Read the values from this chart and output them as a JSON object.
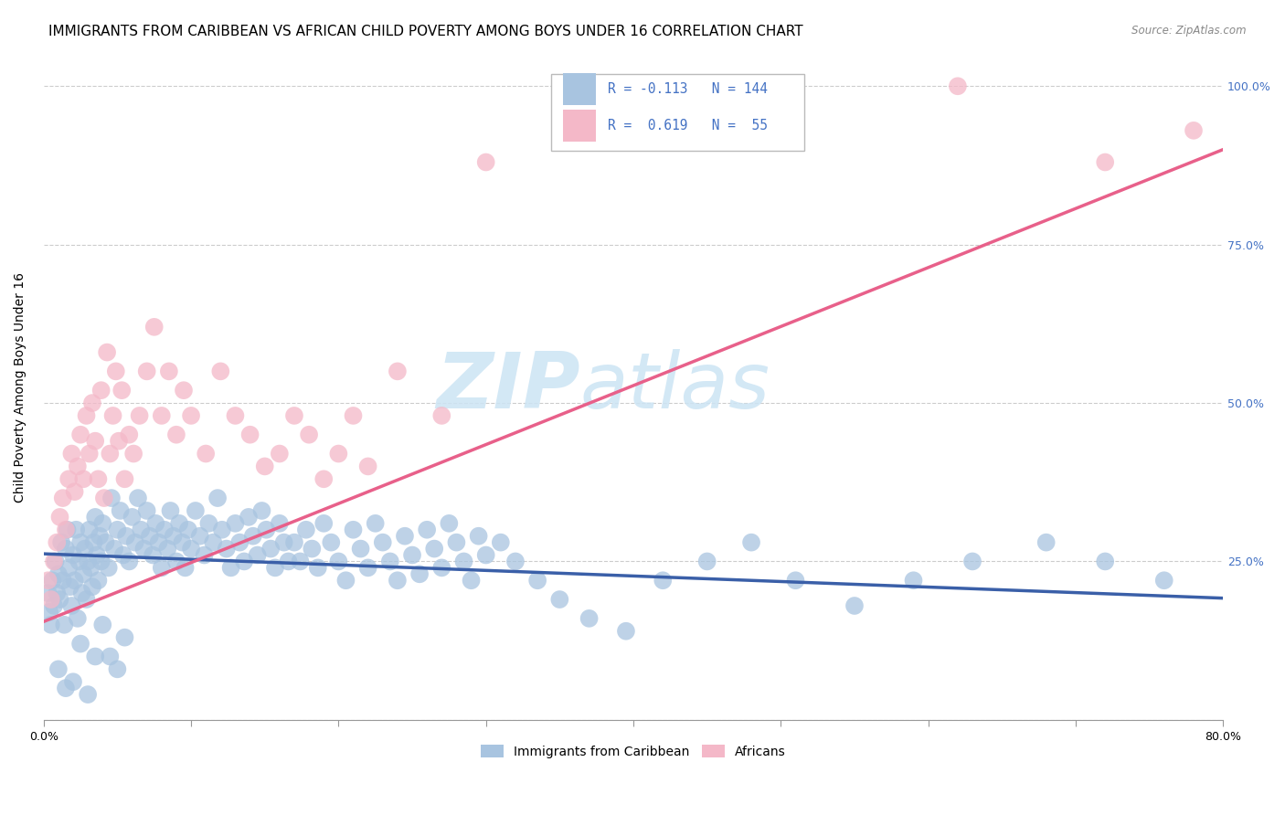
{
  "title": "IMMIGRANTS FROM CARIBBEAN VS AFRICAN CHILD POVERTY AMONG BOYS UNDER 16 CORRELATION CHART",
  "source": "Source: ZipAtlas.com",
  "ylabel": "Child Poverty Among Boys Under 16",
  "xlim": [
    0.0,
    0.8
  ],
  "ylim": [
    0.0,
    1.05
  ],
  "xticks": [
    0.0,
    0.1,
    0.2,
    0.3,
    0.4,
    0.5,
    0.6,
    0.7,
    0.8
  ],
  "xticklabels": [
    "0.0%",
    "",
    "",
    "",
    "",
    "",
    "",
    "",
    "80.0%"
  ],
  "ytick_positions": [
    0.0,
    0.25,
    0.5,
    0.75,
    1.0
  ],
  "ytick_labels_right": [
    "",
    "25.0%",
    "50.0%",
    "75.0%",
    "100.0%"
  ],
  "watermark_zip": "ZIP",
  "watermark_atlas": "atlas",
  "legend_text_r1": "R = -0.113",
  "legend_text_n1": "N = 144",
  "legend_text_r2": "R =  0.619",
  "legend_text_n2": "N =  55",
  "color_caribbean": "#a8c4e0",
  "color_african": "#f4b8c8",
  "line_color_caribbean": "#3a5fa8",
  "line_color_african": "#e8608a",
  "legend_label_caribbean": "Immigrants from Caribbean",
  "legend_label_african": "Africans",
  "title_fontsize": 11,
  "axis_label_fontsize": 10,
  "tick_fontsize": 9,
  "right_tick_color": "#4472c4",
  "grid_color": "#cccccc",
  "background_color": "#ffffff",
  "caribbean_line_x": [
    0.0,
    0.8
  ],
  "caribbean_line_y": [
    0.262,
    0.192
  ],
  "african_line_x": [
    0.0,
    0.8
  ],
  "african_line_y": [
    0.155,
    0.9
  ],
  "caribbean_x": [
    0.003,
    0.004,
    0.005,
    0.006,
    0.007,
    0.008,
    0.009,
    0.01,
    0.011,
    0.012,
    0.013,
    0.014,
    0.015,
    0.016,
    0.017,
    0.018,
    0.019,
    0.02,
    0.021,
    0.022,
    0.023,
    0.024,
    0.025,
    0.026,
    0.027,
    0.028,
    0.029,
    0.03,
    0.031,
    0.032,
    0.033,
    0.034,
    0.035,
    0.036,
    0.037,
    0.038,
    0.039,
    0.04,
    0.042,
    0.044,
    0.046,
    0.048,
    0.05,
    0.052,
    0.054,
    0.056,
    0.058,
    0.06,
    0.062,
    0.064,
    0.066,
    0.068,
    0.07,
    0.072,
    0.074,
    0.076,
    0.078,
    0.08,
    0.082,
    0.084,
    0.086,
    0.088,
    0.09,
    0.092,
    0.094,
    0.096,
    0.098,
    0.1,
    0.103,
    0.106,
    0.109,
    0.112,
    0.115,
    0.118,
    0.121,
    0.124,
    0.127,
    0.13,
    0.133,
    0.136,
    0.139,
    0.142,
    0.145,
    0.148,
    0.151,
    0.154,
    0.157,
    0.16,
    0.163,
    0.166,
    0.17,
    0.174,
    0.178,
    0.182,
    0.186,
    0.19,
    0.195,
    0.2,
    0.205,
    0.21,
    0.215,
    0.22,
    0.225,
    0.23,
    0.235,
    0.24,
    0.245,
    0.25,
    0.255,
    0.26,
    0.265,
    0.27,
    0.275,
    0.28,
    0.285,
    0.29,
    0.295,
    0.3,
    0.31,
    0.32,
    0.335,
    0.35,
    0.37,
    0.395,
    0.42,
    0.45,
    0.48,
    0.51,
    0.55,
    0.59,
    0.63,
    0.68,
    0.72,
    0.76,
    0.01,
    0.015,
    0.02,
    0.025,
    0.03,
    0.035,
    0.04,
    0.045,
    0.05,
    0.055
  ],
  "caribbean_y": [
    0.2,
    0.17,
    0.15,
    0.22,
    0.18,
    0.25,
    0.2,
    0.23,
    0.19,
    0.28,
    0.22,
    0.15,
    0.27,
    0.3,
    0.24,
    0.21,
    0.18,
    0.26,
    0.22,
    0.3,
    0.16,
    0.25,
    0.28,
    0.2,
    0.23,
    0.27,
    0.19,
    0.25,
    0.3,
    0.24,
    0.21,
    0.28,
    0.32,
    0.26,
    0.22,
    0.29,
    0.25,
    0.31,
    0.28,
    0.24,
    0.35,
    0.27,
    0.3,
    0.33,
    0.26,
    0.29,
    0.25,
    0.32,
    0.28,
    0.35,
    0.3,
    0.27,
    0.33,
    0.29,
    0.26,
    0.31,
    0.28,
    0.24,
    0.3,
    0.27,
    0.33,
    0.29,
    0.25,
    0.31,
    0.28,
    0.24,
    0.3,
    0.27,
    0.33,
    0.29,
    0.26,
    0.31,
    0.28,
    0.35,
    0.3,
    0.27,
    0.24,
    0.31,
    0.28,
    0.25,
    0.32,
    0.29,
    0.26,
    0.33,
    0.3,
    0.27,
    0.24,
    0.31,
    0.28,
    0.25,
    0.28,
    0.25,
    0.3,
    0.27,
    0.24,
    0.31,
    0.28,
    0.25,
    0.22,
    0.3,
    0.27,
    0.24,
    0.31,
    0.28,
    0.25,
    0.22,
    0.29,
    0.26,
    0.23,
    0.3,
    0.27,
    0.24,
    0.31,
    0.28,
    0.25,
    0.22,
    0.29,
    0.26,
    0.28,
    0.25,
    0.22,
    0.19,
    0.16,
    0.14,
    0.22,
    0.25,
    0.28,
    0.22,
    0.18,
    0.22,
    0.25,
    0.28,
    0.25,
    0.22,
    0.08,
    0.05,
    0.06,
    0.12,
    0.04,
    0.1,
    0.15,
    0.1,
    0.08,
    0.13
  ],
  "african_x": [
    0.003,
    0.005,
    0.007,
    0.009,
    0.011,
    0.013,
    0.015,
    0.017,
    0.019,
    0.021,
    0.023,
    0.025,
    0.027,
    0.029,
    0.031,
    0.033,
    0.035,
    0.037,
    0.039,
    0.041,
    0.043,
    0.045,
    0.047,
    0.049,
    0.051,
    0.053,
    0.055,
    0.058,
    0.061,
    0.065,
    0.07,
    0.075,
    0.08,
    0.085,
    0.09,
    0.095,
    0.1,
    0.11,
    0.12,
    0.13,
    0.14,
    0.15,
    0.16,
    0.17,
    0.18,
    0.19,
    0.2,
    0.21,
    0.22,
    0.24,
    0.27,
    0.3,
    0.62,
    0.72,
    0.78
  ],
  "african_y": [
    0.22,
    0.19,
    0.25,
    0.28,
    0.32,
    0.35,
    0.3,
    0.38,
    0.42,
    0.36,
    0.4,
    0.45,
    0.38,
    0.48,
    0.42,
    0.5,
    0.44,
    0.38,
    0.52,
    0.35,
    0.58,
    0.42,
    0.48,
    0.55,
    0.44,
    0.52,
    0.38,
    0.45,
    0.42,
    0.48,
    0.55,
    0.62,
    0.48,
    0.55,
    0.45,
    0.52,
    0.48,
    0.42,
    0.55,
    0.48,
    0.45,
    0.4,
    0.42,
    0.48,
    0.45,
    0.38,
    0.42,
    0.48,
    0.4,
    0.55,
    0.48,
    0.88,
    1.0,
    0.88,
    0.93
  ]
}
